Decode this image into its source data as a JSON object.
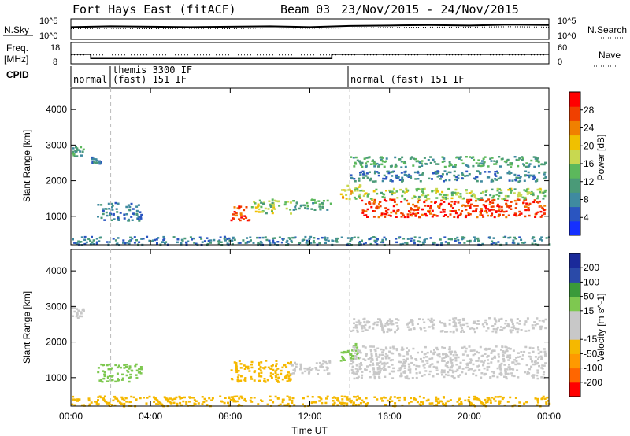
{
  "header": {
    "station": "Fort Hays East (fitACF)",
    "beam": "Beam 03",
    "date_range": "23/Nov/2015 - 24/Nov/2015"
  },
  "colors": {
    "power_scale": [
      "#1530ff",
      "#2a55c0",
      "#3f8aa0",
      "#4a9a78",
      "#5cb85c",
      "#c8d850",
      "#f0c000",
      "#f08000",
      "#f04000",
      "#ff0000"
    ],
    "velocity_scale": [
      "#ff0000",
      "#ff6600",
      "#ff9900",
      "#f5b800",
      "#c8c8c8",
      "#c8c8c8",
      "#7ec850",
      "#3a9a3a",
      "#2a4aa8",
      "#1a2a9a"
    ],
    "noise_line": "#000000",
    "scatter_grey": "#c8c8c8"
  },
  "chart_data": [
    {
      "type": "line",
      "name": "noise-panel",
      "left_label": "N.Sky",
      "right_label": "N.Search",
      "left_ticks": [
        "10^5",
        "10^0"
      ],
      "right_ticks": [
        "10^5",
        "10^0"
      ],
      "x": [
        0,
        2,
        4,
        6,
        8,
        10,
        12,
        14,
        16,
        18,
        20,
        22,
        24
      ],
      "series": [
        {
          "name": "N.Sky",
          "values": [
            3.0,
            3.2,
            3.1,
            3.0,
            3.1,
            3.2,
            3.0,
            3.3,
            3.4,
            3.5,
            3.4,
            3.6,
            3.5
          ]
        },
        {
          "name": "N.Search",
          "values": [
            2.6,
            2.7,
            2.6,
            2.7,
            2.6,
            2.8,
            2.7,
            2.8,
            2.9,
            3.0,
            3.0,
            3.1,
            3.0
          ]
        }
      ]
    },
    {
      "type": "line",
      "name": "frequency-panel",
      "left_label": "Freq.",
      "left_unit": "[MHz]",
      "right_label": "Nave",
      "left_ticks": [
        "18",
        "8"
      ],
      "right_ticks": [
        "60",
        "0"
      ],
      "steps": [
        {
          "from": 0.0,
          "to": 1.0,
          "value": 12.5
        },
        {
          "from": 1.0,
          "to": 13.1,
          "value": 10.5
        },
        {
          "from": 13.1,
          "to": 24.0,
          "value": 12.5
        }
      ],
      "nave": [
        {
          "from": 0.0,
          "to": 24.0,
          "value": 25
        }
      ]
    },
    {
      "type": "timeline",
      "name": "cpid-panel",
      "label": "CPID",
      "segments": [
        {
          "start": 0.0,
          "end": 2.0,
          "labels": [
            "normal"
          ]
        },
        {
          "start": 2.0,
          "end": 14.0,
          "labels": [
            "themis 3300 IF",
            "(fast) 151 IF"
          ]
        },
        {
          "start": 14.0,
          "end": 24.0,
          "labels": [
            "normal (fast) 151 IF"
          ]
        }
      ]
    },
    {
      "type": "heatmap",
      "name": "power-panel",
      "ylabel": "Slant Range [km]",
      "yticks": [
        1000,
        2000,
        3000,
        4000
      ],
      "ylim": [
        200,
        4600
      ],
      "xlim": [
        0,
        24
      ],
      "colorbar_label": "Power [dB]",
      "colorbar_ticks": [
        4,
        8,
        12,
        16,
        20,
        24,
        28
      ],
      "colorbar_range": [
        0,
        32
      ],
      "regions": [
        {
          "t0": 0.0,
          "t1": 0.6,
          "r0": 2700,
          "r1": 3000,
          "value": 12
        },
        {
          "t0": 1.0,
          "t1": 1.5,
          "r0": 2500,
          "r1": 2700,
          "value": 8
        },
        {
          "t0": 1.3,
          "t1": 3.5,
          "r0": 900,
          "r1": 1400,
          "value": 8
        },
        {
          "t0": 8.0,
          "t1": 9.0,
          "r0": 900,
          "r1": 1300,
          "value": 28
        },
        {
          "t0": 9.0,
          "t1": 11.0,
          "r0": 1100,
          "r1": 1500,
          "value": 16
        },
        {
          "t0": 11.0,
          "t1": 13.0,
          "r0": 1200,
          "r1": 1500,
          "value": 12
        },
        {
          "t0": 13.5,
          "t1": 14.5,
          "r0": 1500,
          "r1": 1900,
          "value": 20
        },
        {
          "t0": 14.5,
          "t1": 23.8,
          "r0": 1000,
          "r1": 1500,
          "value": 28
        },
        {
          "t0": 14.0,
          "t1": 23.8,
          "r0": 1500,
          "r1": 1800,
          "value": 16
        },
        {
          "t0": 14.0,
          "t1": 23.8,
          "r0": 2400,
          "r1": 2700,
          "value": 12
        },
        {
          "t0": 14.0,
          "t1": 23.8,
          "r0": 2000,
          "r1": 2300,
          "value": 8
        },
        {
          "t0": 0.0,
          "t1": 24.0,
          "r0": 220,
          "r1": 450,
          "value": 8
        }
      ]
    },
    {
      "type": "heatmap",
      "name": "velocity-panel",
      "ylabel": "Slant Range [km]",
      "xlabel": "Time UT",
      "xticks": [
        "00:00",
        "04:00",
        "08:00",
        "12:00",
        "16:00",
        "20:00",
        "00:00"
      ],
      "yticks": [
        1000,
        2000,
        3000,
        4000
      ],
      "ylim": [
        200,
        4600
      ],
      "xlim": [
        0,
        24
      ],
      "colorbar_label": "Velocity [m s^-1]",
      "colorbar_ticks": [
        -200,
        -100,
        -50,
        -15,
        15,
        50,
        100,
        200
      ],
      "regions": [
        {
          "t0": 0.0,
          "t1": 0.6,
          "r0": 2700,
          "r1": 3000,
          "value": 0
        },
        {
          "t0": 1.3,
          "t1": 3.5,
          "r0": 900,
          "r1": 1400,
          "value": 40
        },
        {
          "t0": 8.0,
          "t1": 11.0,
          "r0": 900,
          "r1": 1500,
          "value": -40
        },
        {
          "t0": 11.0,
          "t1": 13.0,
          "r0": 1100,
          "r1": 1500,
          "value": 0
        },
        {
          "t0": 13.5,
          "t1": 14.5,
          "r0": 1500,
          "r1": 2000,
          "value": 40
        },
        {
          "t0": 14.0,
          "t1": 23.8,
          "r0": 1000,
          "r1": 1900,
          "value": 0
        },
        {
          "t0": 14.0,
          "t1": 23.8,
          "r0": 2300,
          "r1": 2700,
          "value": 0
        },
        {
          "t0": 0.0,
          "t1": 24.0,
          "r0": 220,
          "r1": 500,
          "value": -40
        }
      ]
    }
  ]
}
